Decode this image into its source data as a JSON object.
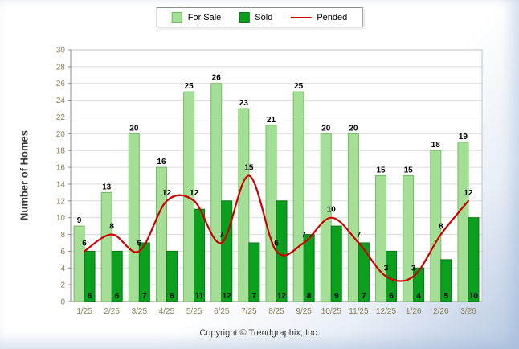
{
  "legend": {
    "for_sale": "For Sale",
    "sold": "Sold",
    "pended": "Pended"
  },
  "y_axis_title": "Number of Homes",
  "footer": "Copyright © Trendgraphix, Inc.",
  "colors": {
    "for_sale_fill": "#A5DE97",
    "for_sale_border": "#6FBE5E",
    "sold_fill": "#0AA01E",
    "sold_border": "#067A15",
    "pended_line": "#CC0000",
    "axis_text": "#8E7F55",
    "grid_line": "#DBDBDB",
    "plot_border": "#C2C2C2",
    "axis_line": "#8A8A8A",
    "value_label": "#000000",
    "plot_background": "#FFFFFF"
  },
  "chart_data": {
    "type": "bar",
    "title": "",
    "xlabel": "",
    "ylabel": "Number of Homes",
    "categories": [
      "1/25",
      "2/25",
      "3/25",
      "4/25",
      "5/25",
      "6/25",
      "7/25",
      "8/25",
      "9/25",
      "10/25",
      "11/25",
      "12/25",
      "1/26",
      "2/26",
      "3/26"
    ],
    "series": [
      {
        "name": "For Sale",
        "type": "bar",
        "values": [
          9,
          13,
          20,
          16,
          25,
          26,
          23,
          21,
          25,
          20,
          20,
          15,
          15,
          18,
          19
        ]
      },
      {
        "name": "Sold",
        "type": "bar",
        "values": [
          6,
          6,
          7,
          6,
          11,
          12,
          7,
          12,
          8,
          9,
          7,
          6,
          4,
          5,
          10
        ]
      },
      {
        "name": "Pended",
        "type": "line",
        "values": [
          6,
          8,
          6,
          12,
          12,
          7,
          15,
          6,
          7,
          10,
          7,
          3,
          3,
          8,
          12
        ]
      }
    ],
    "ylim": [
      0,
      30
    ],
    "ytick_step": 2,
    "grid": true,
    "legend_position": "top-center",
    "value_labels": true
  }
}
